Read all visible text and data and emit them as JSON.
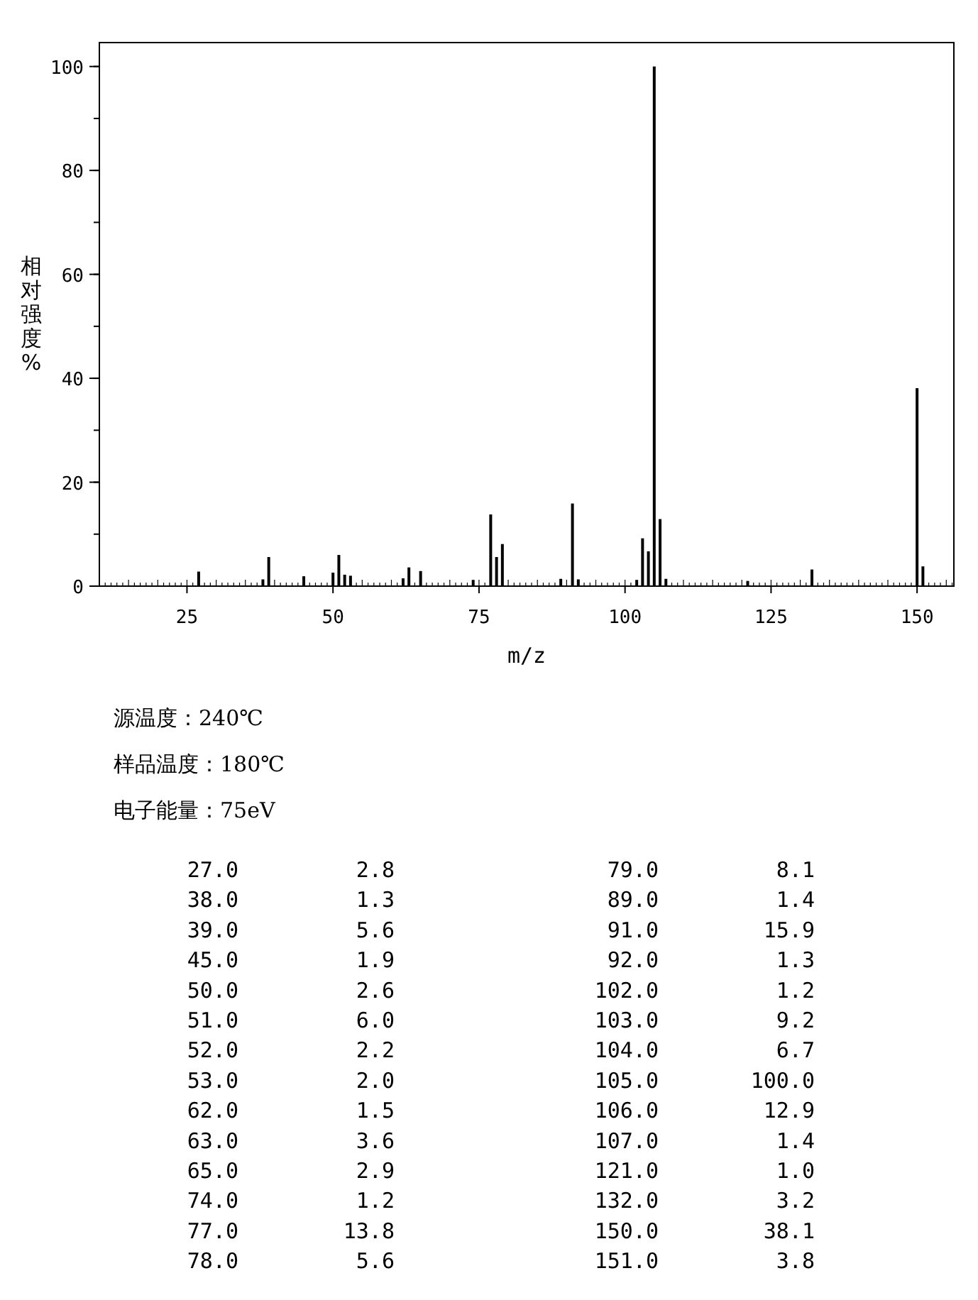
{
  "chart_data": {
    "type": "bar",
    "xlabel": "m/z",
    "ylabel": "相对强度%",
    "color": "#000000",
    "x": [
      27,
      38,
      39,
      45,
      50,
      51,
      52,
      53,
      62,
      63,
      65,
      74,
      77,
      78,
      79,
      89,
      91,
      92,
      102,
      103,
      104,
      105,
      106,
      107,
      121,
      132,
      150,
      151
    ],
    "values": [
      2.8,
      1.3,
      5.6,
      1.9,
      2.6,
      6.0,
      2.2,
      2.0,
      1.5,
      3.6,
      2.9,
      1.2,
      13.8,
      5.6,
      8.1,
      1.4,
      15.9,
      1.3,
      1.2,
      9.2,
      6.7,
      100.0,
      12.9,
      1.4,
      1.0,
      3.2,
      38.1,
      3.8
    ],
    "xlim": [
      10,
      156.3
    ],
    "xticks": [
      25,
      50,
      75,
      100,
      125,
      150
    ],
    "ylim": [
      0,
      104.6
    ],
    "yticks": [
      0,
      20,
      40,
      60,
      80,
      100
    ],
    "grid": false,
    "annotations": [
      "源温度：240℃",
      "样品温度：180℃",
      "电子能量：75eV",
      "27.0",
      "2.8",
      "79.0",
      "8.1",
      "38.0",
      "1.3",
      "89.0",
      "1.4",
      "39.0",
      "5.6",
      "91.0",
      "15.9",
      "45.0",
      "1.9",
      "92.0",
      "1.3",
      "50.0",
      "2.6",
      "102.0",
      "1.2",
      "51.0",
      "6.0",
      "103.0",
      "9.2",
      "52.0",
      "2.2",
      "104.0",
      "6.7",
      "53.0",
      "2.0",
      "105.0",
      "100.0",
      "62.0",
      "1.5",
      "106.0",
      "12.9",
      "63.0",
      "3.6",
      "107.0",
      "1.4",
      "65.0",
      "2.9",
      "121.0",
      "1.0",
      "74.0",
      "1.2",
      "132.0",
      "3.2",
      "77.0",
      "13.8",
      "150.0",
      "38.1",
      "78.0",
      "5.6",
      "151.0",
      "3.8"
    ]
  }
}
